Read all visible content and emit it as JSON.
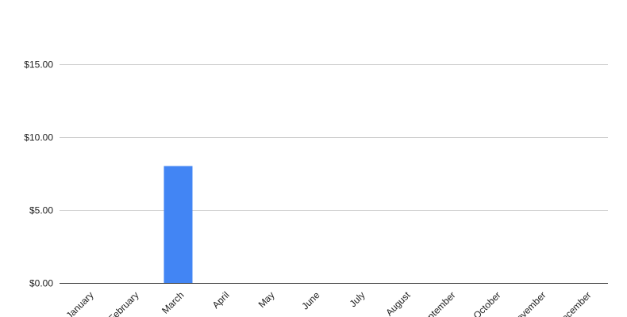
{
  "chart_data": {
    "type": "bar",
    "title": "",
    "xlabel": "",
    "ylabel": "",
    "categories": [
      "January",
      "February",
      "March",
      "April",
      "May",
      "June",
      "July",
      "August",
      "September",
      "October",
      "November",
      "December"
    ],
    "values": [
      0,
      0,
      8,
      0,
      0,
      0,
      0,
      0,
      0,
      0,
      0,
      0
    ],
    "ylim": [
      0,
      15
    ],
    "yticks": [
      0,
      5,
      10,
      15
    ],
    "ytick_labels": [
      "$0.00",
      "$5.00",
      "$10.00",
      "$15.00"
    ],
    "grid": true,
    "legend": "none",
    "bar_color": "#4285f4"
  }
}
